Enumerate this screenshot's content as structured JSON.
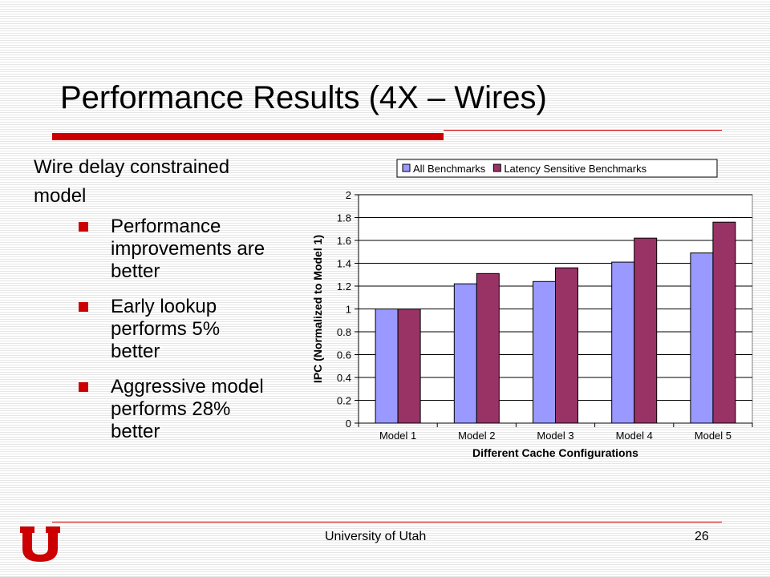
{
  "slide": {
    "title": "Performance Results (4X – Wires)",
    "lead_line1": "Wire delay constrained",
    "lead_line2": "model",
    "bullets": [
      {
        "text": "Performance improvements are better"
      },
      {
        "text": "Early lookup performs 5% better"
      },
      {
        "text": "Aggressive model performs 28% better"
      }
    ],
    "footer": "University of Utah",
    "page_number": "26"
  },
  "colors": {
    "accent": "#cc0000",
    "series_1": "#9999ff",
    "series_2": "#993366"
  },
  "chart_data": {
    "type": "bar",
    "categories": [
      "Model 1",
      "Model 2",
      "Model 3",
      "Model 4",
      "Model 5"
    ],
    "series": [
      {
        "name": "All Benchmarks",
        "values": [
          1.0,
          1.22,
          1.24,
          1.41,
          1.49
        ]
      },
      {
        "name": "Latency Sensitive Benchmarks",
        "values": [
          1.0,
          1.31,
          1.36,
          1.62,
          1.76
        ]
      }
    ],
    "xlabel": "Different Cache Configurations",
    "ylabel": "IPC (Normalized to Model 1)",
    "ylim": [
      0,
      2
    ],
    "yticks": [
      "0",
      "0.2",
      "0.4",
      "0.6",
      "0.8",
      "1",
      "1.2",
      "1.4",
      "1.6",
      "1.8",
      "2"
    ],
    "grid": true,
    "legend_position": "top"
  }
}
